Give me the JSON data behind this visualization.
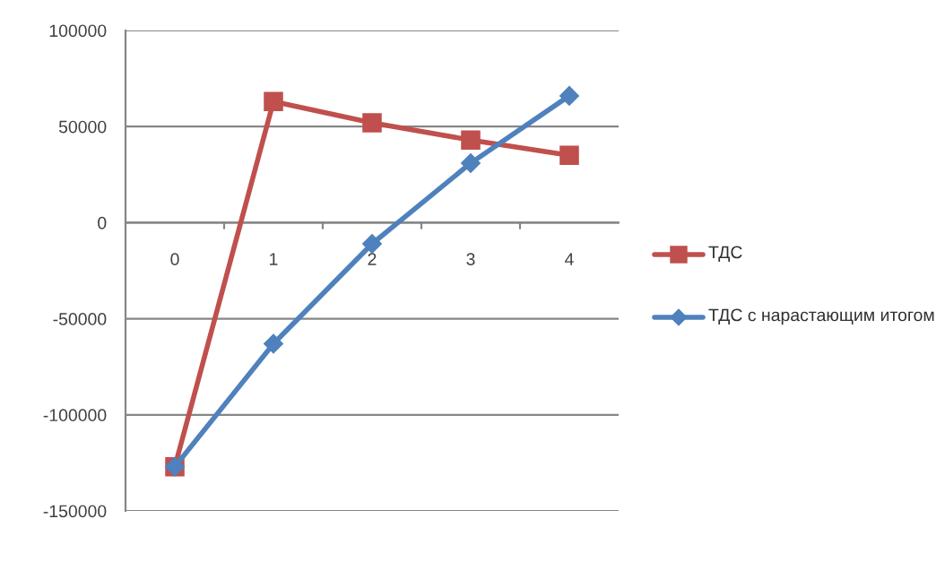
{
  "chart_data": {
    "type": "line",
    "categories": [
      "0",
      "1",
      "2",
      "3",
      "4"
    ],
    "series": [
      {
        "name": "ТДС",
        "color": "#c0504d",
        "marker": "square",
        "values": [
          -127000,
          63000,
          52000,
          43000,
          35000
        ]
      },
      {
        "name": "ТДС с нарастающим итогом",
        "color": "#4f81bd",
        "marker": "diamond",
        "values": [
          -127000,
          -63000,
          -11000,
          31000,
          66000
        ]
      }
    ],
    "ylim": [
      -150000,
      100000
    ],
    "yticks": [
      -150000,
      -100000,
      -50000,
      0,
      50000,
      100000
    ],
    "grid": "y",
    "legend": "right"
  }
}
